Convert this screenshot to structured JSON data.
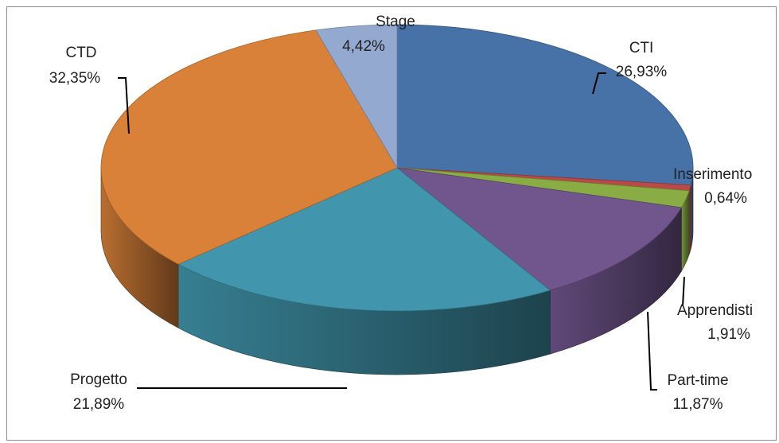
{
  "chart_data": {
    "type": "pie",
    "style": "3d",
    "title": "",
    "slices": [
      {
        "name": "CTI",
        "label": "26,93%",
        "value": 26.93,
        "color": "#4672a8"
      },
      {
        "name": "Inserimento",
        "label": "0,64%",
        "value": 0.64,
        "color": "#b94a48"
      },
      {
        "name": "Apprendisti",
        "label": "1,91%",
        "value": 1.91,
        "color": "#8aac45"
      },
      {
        "name": "Part-time",
        "label": "11,87%",
        "value": 11.87,
        "color": "#71568e"
      },
      {
        "name": "Progetto",
        "label": "21,89%",
        "value": 21.89,
        "color": "#4195ac"
      },
      {
        "name": "CTD",
        "label": "32,35%",
        "value": 32.35,
        "color": "#d98139"
      },
      {
        "name": "Stage",
        "label": "4,42%",
        "value": 4.42,
        "color": "#93a9d0"
      }
    ]
  }
}
